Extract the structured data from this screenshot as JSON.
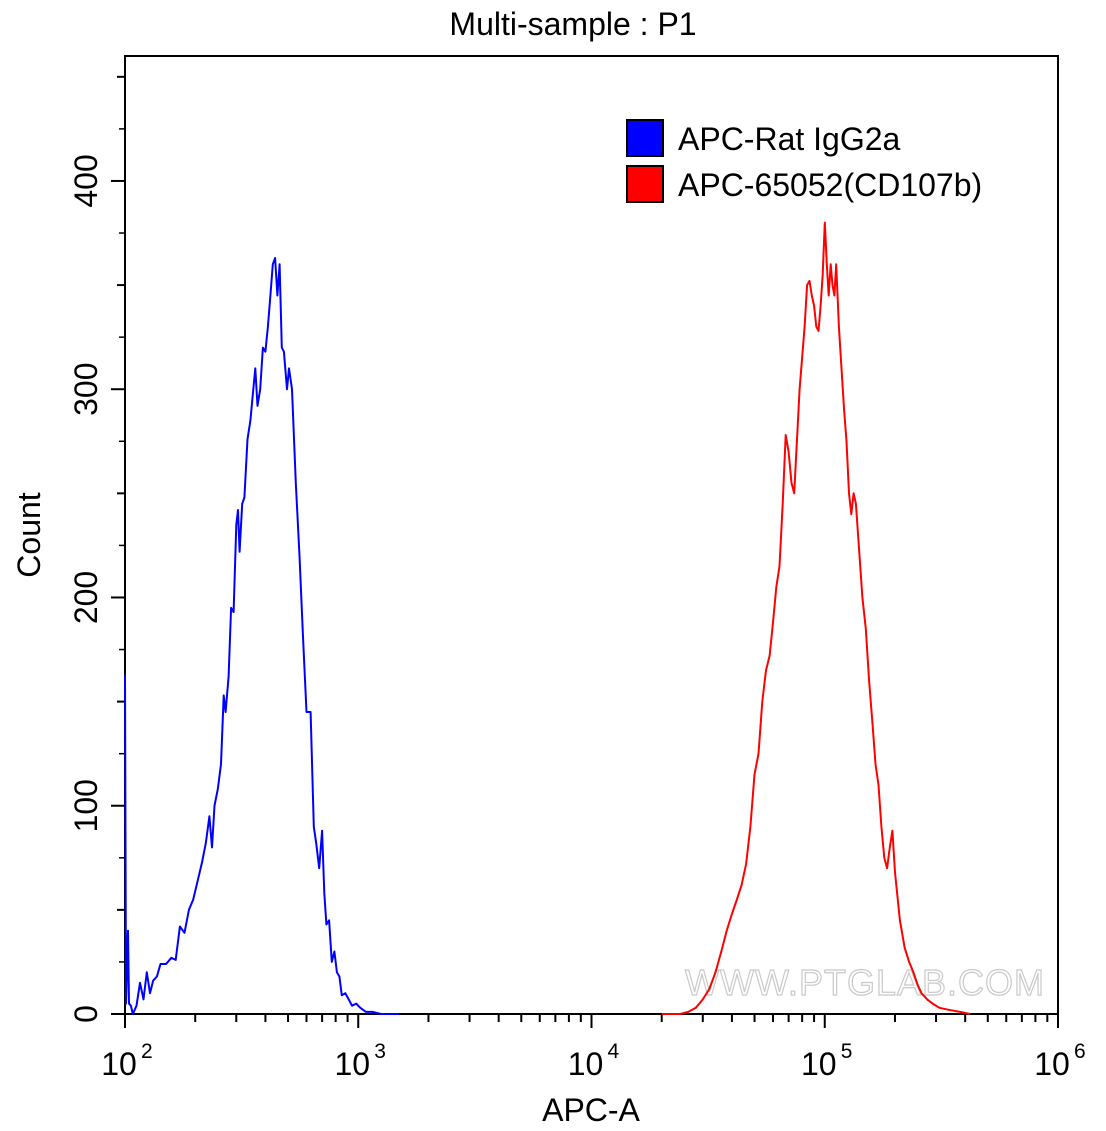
{
  "chart_data": {
    "type": "line",
    "title": "Multi-sample : P1",
    "xlabel": "APC-A",
    "ylabel": "Count",
    "x_scale": "log",
    "xlim": [
      100,
      1000000
    ],
    "ylim": [
      0,
      460
    ],
    "x_ticks": [
      {
        "value": 100,
        "base": "10",
        "exp": "2"
      },
      {
        "value": 1000,
        "base": "10",
        "exp": "3"
      },
      {
        "value": 10000,
        "base": "10",
        "exp": "4"
      },
      {
        "value": 100000,
        "base": "10",
        "exp": "5"
      },
      {
        "value": 1000000,
        "base": "10",
        "exp": "6"
      }
    ],
    "y_ticks": [
      0,
      100,
      200,
      300,
      400
    ],
    "legend_position": "top-right",
    "watermark": "WWW.PTGLAB.COM",
    "series": [
      {
        "name": "APC-Rat IgG2a",
        "color": "#0000ff",
        "points": [
          [
            100,
            163
          ],
          [
            101,
            5
          ],
          [
            103,
            40
          ],
          [
            104,
            5
          ],
          [
            106,
            4
          ],
          [
            108,
            0
          ],
          [
            110,
            2
          ],
          [
            112,
            4
          ],
          [
            116,
            15
          ],
          [
            120,
            7
          ],
          [
            124,
            20
          ],
          [
            128,
            10
          ],
          [
            132,
            16
          ],
          [
            137,
            18
          ],
          [
            142,
            24
          ],
          [
            150,
            24
          ],
          [
            158,
            27
          ],
          [
            165,
            26
          ],
          [
            172,
            42
          ],
          [
            180,
            39
          ],
          [
            188,
            50
          ],
          [
            196,
            55
          ],
          [
            205,
            64
          ],
          [
            214,
            73
          ],
          [
            222,
            82
          ],
          [
            230,
            95
          ],
          [
            236,
            80
          ],
          [
            242,
            100
          ],
          [
            250,
            108
          ],
          [
            258,
            120
          ],
          [
            265,
            153
          ],
          [
            270,
            145
          ],
          [
            278,
            162
          ],
          [
            285,
            195
          ],
          [
            292,
            193
          ],
          [
            300,
            235
          ],
          [
            305,
            242
          ],
          [
            310,
            222
          ],
          [
            318,
            245
          ],
          [
            325,
            248
          ],
          [
            335,
            276
          ],
          [
            345,
            285
          ],
          [
            355,
            300
          ],
          [
            362,
            310
          ],
          [
            370,
            292
          ],
          [
            380,
            300
          ],
          [
            390,
            320
          ],
          [
            400,
            318
          ],
          [
            410,
            330
          ],
          [
            420,
            345
          ],
          [
            430,
            360
          ],
          [
            440,
            363
          ],
          [
            450,
            345
          ],
          [
            460,
            360
          ],
          [
            470,
            320
          ],
          [
            480,
            318
          ],
          [
            495,
            300
          ],
          [
            505,
            310
          ],
          [
            520,
            300
          ],
          [
            540,
            255
          ],
          [
            560,
            220
          ],
          [
            580,
            180
          ],
          [
            600,
            145
          ],
          [
            625,
            145
          ],
          [
            645,
            90
          ],
          [
            660,
            82
          ],
          [
            680,
            70
          ],
          [
            700,
            88
          ],
          [
            715,
            58
          ],
          [
            730,
            43
          ],
          [
            750,
            45
          ],
          [
            770,
            25
          ],
          [
            790,
            30
          ],
          [
            810,
            20
          ],
          [
            830,
            18
          ],
          [
            850,
            9
          ],
          [
            880,
            10
          ],
          [
            910,
            7
          ],
          [
            940,
            4
          ],
          [
            980,
            5
          ],
          [
            1020,
            3
          ],
          [
            1080,
            1
          ],
          [
            1150,
            1
          ],
          [
            1250,
            0
          ],
          [
            1500,
            0
          ]
        ]
      },
      {
        "name": "APC-65052(CD107b)",
        "color": "#ff0000",
        "points": [
          [
            20000,
            0
          ],
          [
            24000,
            0
          ],
          [
            26000,
            1
          ],
          [
            28000,
            3
          ],
          [
            30000,
            7
          ],
          [
            32000,
            12
          ],
          [
            34000,
            20
          ],
          [
            36000,
            30
          ],
          [
            38000,
            40
          ],
          [
            40000,
            48
          ],
          [
            42000,
            55
          ],
          [
            44000,
            62
          ],
          [
            46000,
            72
          ],
          [
            48000,
            90
          ],
          [
            50000,
            115
          ],
          [
            52000,
            125
          ],
          [
            54000,
            150
          ],
          [
            56000,
            165
          ],
          [
            58000,
            172
          ],
          [
            60000,
            188
          ],
          [
            62000,
            205
          ],
          [
            64000,
            215
          ],
          [
            66000,
            245
          ],
          [
            68000,
            278
          ],
          [
            70000,
            270
          ],
          [
            72000,
            255
          ],
          [
            74000,
            250
          ],
          [
            76000,
            275
          ],
          [
            78000,
            300
          ],
          [
            80000,
            315
          ],
          [
            82000,
            330
          ],
          [
            84000,
            350
          ],
          [
            86000,
            352
          ],
          [
            88000,
            345
          ],
          [
            90000,
            340
          ],
          [
            92000,
            330
          ],
          [
            94000,
            328
          ],
          [
            96000,
            340
          ],
          [
            98000,
            355
          ],
          [
            100000,
            380
          ],
          [
            102000,
            360
          ],
          [
            104000,
            345
          ],
          [
            106000,
            360
          ],
          [
            108000,
            350
          ],
          [
            110000,
            345
          ],
          [
            112000,
            360
          ],
          [
            115000,
            330
          ],
          [
            118000,
            310
          ],
          [
            121000,
            290
          ],
          [
            124000,
            275
          ],
          [
            127000,
            250
          ],
          [
            130000,
            240
          ],
          [
            133000,
            250
          ],
          [
            136000,
            245
          ],
          [
            140000,
            225
          ],
          [
            145000,
            200
          ],
          [
            150000,
            185
          ],
          [
            155000,
            160
          ],
          [
            160000,
            140
          ],
          [
            165000,
            120
          ],
          [
            170000,
            110
          ],
          [
            175000,
            90
          ],
          [
            180000,
            75
          ],
          [
            185000,
            70
          ],
          [
            190000,
            80
          ],
          [
            195000,
            88
          ],
          [
            200000,
            68
          ],
          [
            210000,
            45
          ],
          [
            220000,
            32
          ],
          [
            230000,
            25
          ],
          [
            240000,
            20
          ],
          [
            250000,
            14
          ],
          [
            260000,
            10
          ],
          [
            275000,
            7
          ],
          [
            290000,
            5
          ],
          [
            310000,
            3
          ],
          [
            340000,
            2
          ],
          [
            380000,
            1
          ],
          [
            420000,
            0
          ]
        ]
      }
    ]
  }
}
